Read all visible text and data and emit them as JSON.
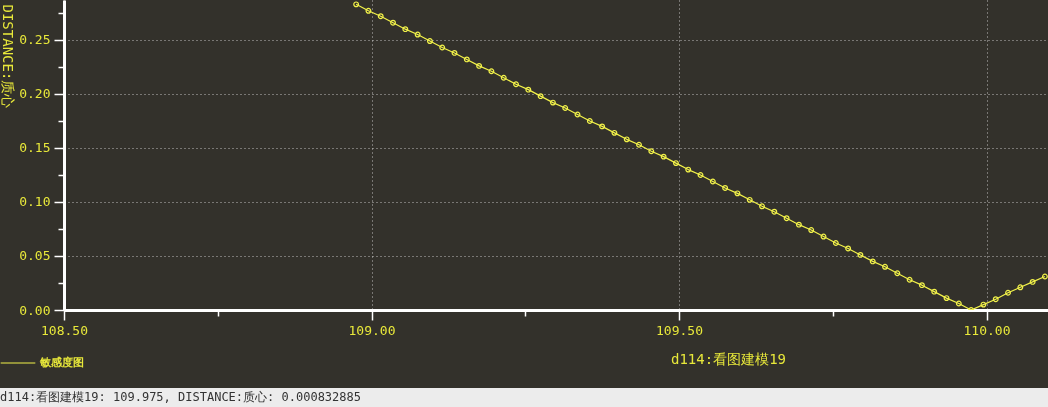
{
  "chart_data": {
    "type": "line",
    "xlabel": "d114:看图建模19",
    "ylabel": "DISTANCE:质心",
    "annotations": [
      "d114:看图建模19: 109.975, DISTANCE:质心: 0.000832885"
    ],
    "xlim": [
      108.5,
      110.1
    ],
    "xticks": [
      {
        "value": 108.5,
        "label": "108.50"
      },
      {
        "value": 108.75,
        "label": null
      },
      {
        "value": 109,
        "label": "109.00"
      },
      {
        "value": 109.25,
        "label": null
      },
      {
        "value": 109.5,
        "label": "109.50"
      },
      {
        "value": 109.75,
        "label": null
      },
      {
        "value": 110,
        "label": "110.00"
      }
    ],
    "ylim": [
      0,
      0.287
    ],
    "yticks": [
      {
        "value": 0,
        "label": "0.00"
      },
      {
        "value": 0.025,
        "label": null
      },
      {
        "value": 0.05,
        "label": "0.05"
      },
      {
        "value": 0.075,
        "label": null
      },
      {
        "value": 0.1,
        "label": "0.10"
      },
      {
        "value": 0.125,
        "label": null
      },
      {
        "value": 0.15,
        "label": "0.15"
      },
      {
        "value": 0.175,
        "label": null
      },
      {
        "value": 0.2,
        "label": "0.20"
      },
      {
        "value": 0.225,
        "label": null
      },
      {
        "value": 0.25,
        "label": "0.25"
      },
      {
        "value": 0.275,
        "label": null
      }
    ],
    "grid": true,
    "legend": "bottom left",
    "marker": "circle",
    "line_style": "solid",
    "series": [
      {
        "name": "敏感度图",
        "color": "#f2f24a",
        "x": [
          108.975,
          108.995,
          109.015,
          109.035,
          109.055,
          109.075,
          109.095,
          109.115,
          109.135,
          109.155,
          109.175,
          109.195,
          109.215,
          109.235,
          109.255,
          109.275,
          109.295,
          109.315,
          109.335,
          109.355,
          109.375,
          109.395,
          109.415,
          109.435,
          109.455,
          109.475,
          109.495,
          109.515,
          109.535,
          109.555,
          109.575,
          109.595,
          109.615,
          109.635,
          109.655,
          109.675,
          109.695,
          109.715,
          109.735,
          109.755,
          109.775,
          109.795,
          109.815,
          109.835,
          109.855,
          109.875,
          109.895,
          109.915,
          109.935,
          109.955,
          109.975,
          109.995,
          110.015,
          110.035,
          110.055,
          110.075,
          110.095
        ],
        "values": [
          0.283,
          0.277,
          0.272,
          0.266,
          0.26,
          0.255,
          0.249,
          0.243,
          0.238,
          0.232,
          0.226,
          0.221,
          0.215,
          0.209,
          0.204,
          0.198,
          0.192,
          0.187,
          0.181,
          0.175,
          0.17,
          0.164,
          0.158,
          0.153,
          0.147,
          0.142,
          0.136,
          0.13,
          0.125,
          0.119,
          0.113,
          0.108,
          0.102,
          0.096,
          0.091,
          0.085,
          0.079,
          0.074,
          0.068,
          0.062,
          0.057,
          0.051,
          0.045,
          0.04,
          0.034,
          0.028,
          0.023,
          0.017,
          0.011,
          0.006,
          0,
          0.005,
          0.01,
          0.016,
          0.021,
          0.026,
          0.031
        ]
      }
    ]
  }
}
